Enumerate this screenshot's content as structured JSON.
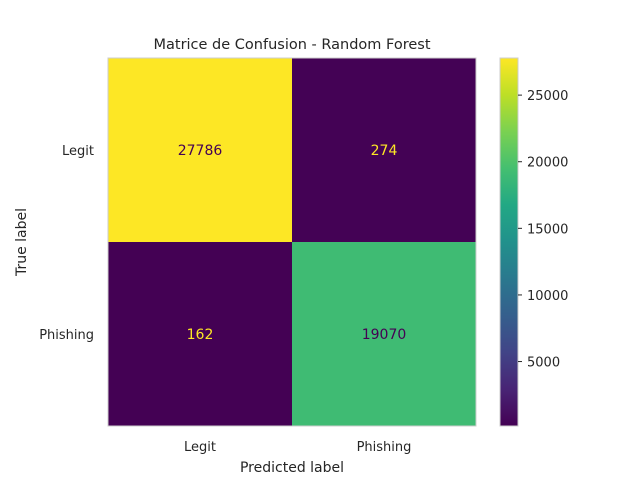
{
  "chart_data": {
    "type": "heatmap",
    "title": "Matrice de Confusion - Random Forest",
    "xlabel": "Predicted label",
    "ylabel": "True label",
    "x_categories": [
      "Legit",
      "Phishing"
    ],
    "y_categories": [
      "Legit",
      "Phishing"
    ],
    "values": [
      [
        27786,
        274
      ],
      [
        162,
        19070
      ]
    ],
    "colormap": "viridis",
    "colorbar": {
      "ticks": [
        5000,
        10000,
        15000,
        20000,
        25000
      ],
      "tick_labels": [
        "5000",
        "10000",
        "15000",
        "20000",
        "25000"
      ],
      "range": [
        162,
        27786
      ]
    },
    "grid": false,
    "text_colors": {
      "on_dark": "#fde725",
      "on_light": "#440154"
    }
  }
}
